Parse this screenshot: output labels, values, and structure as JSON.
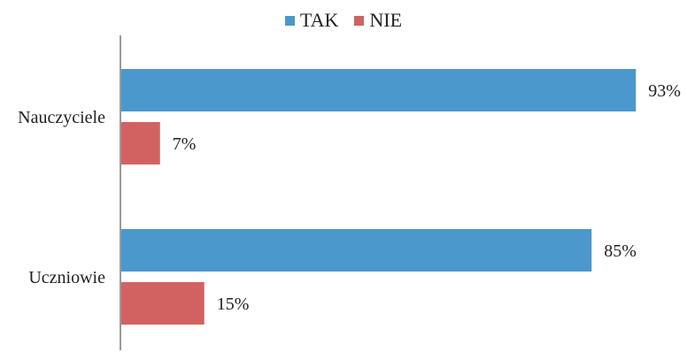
{
  "chart_data": {
    "type": "bar",
    "orientation": "horizontal",
    "categories": [
      "Nauczyciele",
      "Uczniowie"
    ],
    "series": [
      {
        "name": "TAK",
        "color": "#4a98cc",
        "values": [
          93,
          85
        ],
        "labels": [
          "93%",
          "85%"
        ]
      },
      {
        "name": "NIE",
        "color": "#d26262",
        "values": [
          7,
          15
        ],
        "labels": [
          "7%",
          "15%"
        ]
      }
    ],
    "xlim": [
      0,
      100
    ],
    "unit": "%",
    "grid": false,
    "legend_position": "top-center"
  }
}
